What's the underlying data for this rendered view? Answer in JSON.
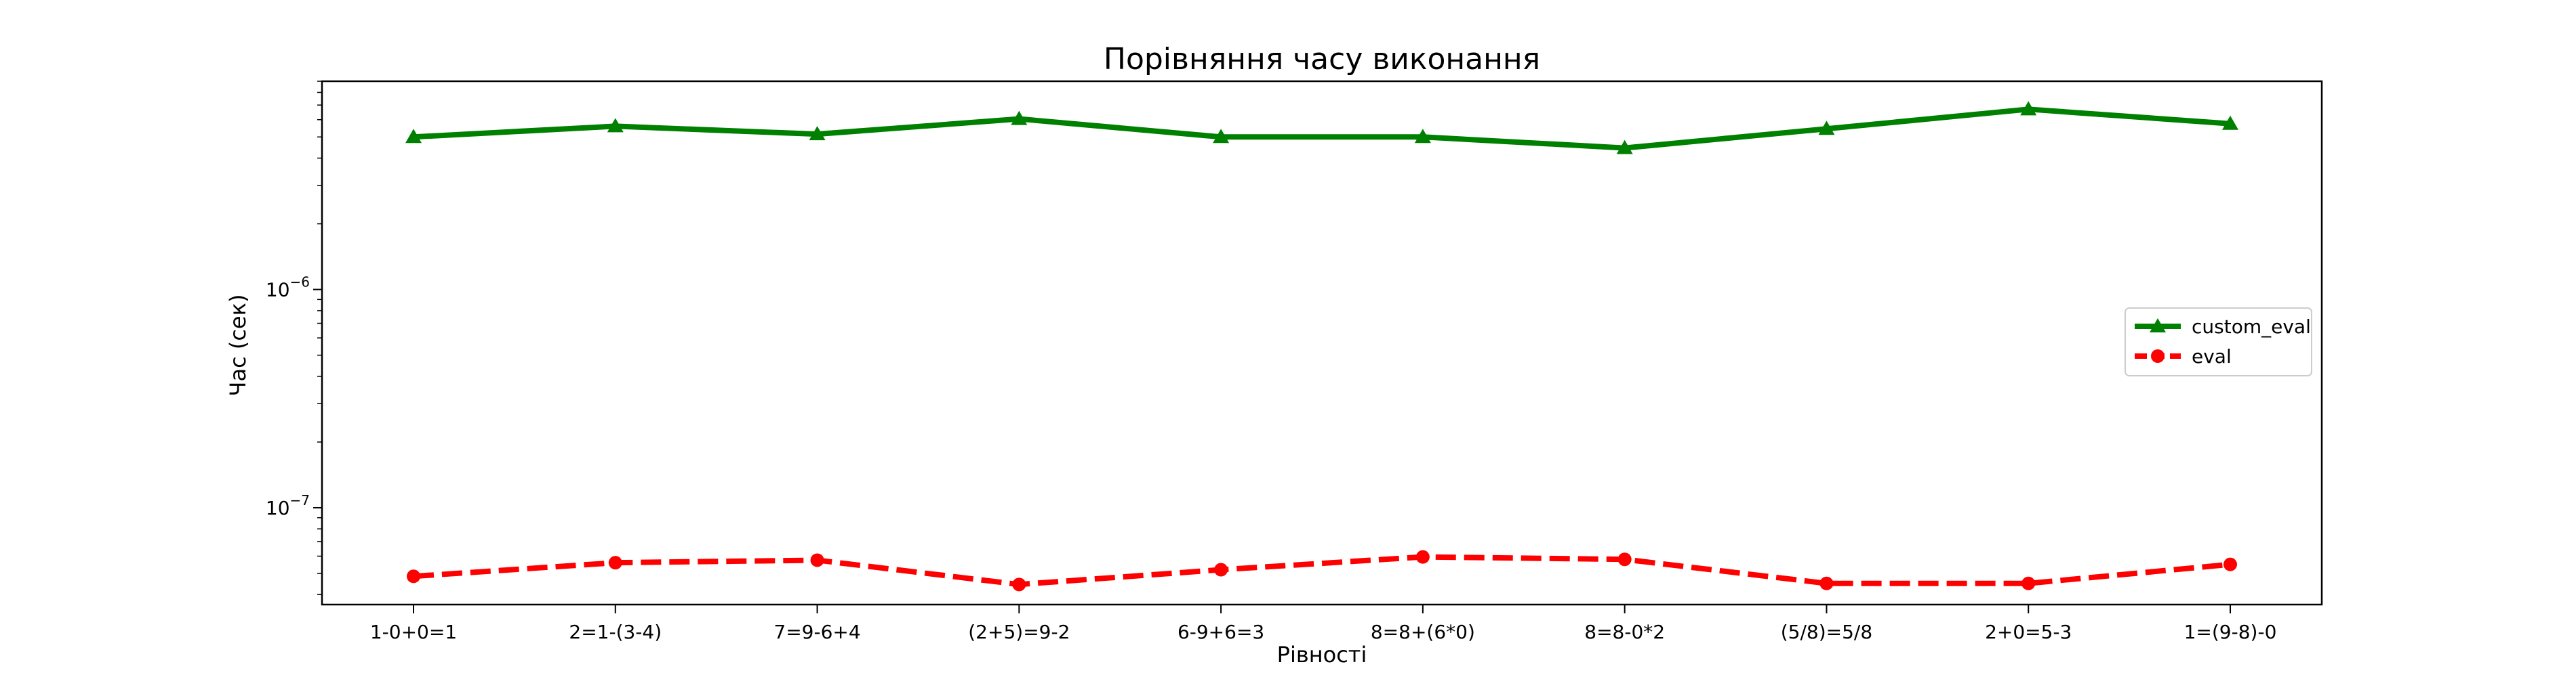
{
  "chart_data": {
    "type": "line",
    "title": "Порівняння часу виконання",
    "xlabel": "Рівності",
    "ylabel": "Час (сек)",
    "yscale": "log",
    "ylim": [
      3.6e-08,
      9e-06
    ],
    "yticks": [
      {
        "value": 1e-06,
        "base": "10",
        "exp": "−6"
      },
      {
        "value": 1e-07,
        "base": "10",
        "exp": "−7"
      }
    ],
    "categories": [
      "1-0+0=1",
      "2=1-(3-4)",
      "7=9-6+4",
      "(2+5)=9-2",
      "6-9+6=3",
      "8=8+(6*0)",
      "8=8-0*2",
      "(5/8)=5/8",
      "2+0=5-3",
      "1=(9-8)-0"
    ],
    "series": [
      {
        "name": "custom_eval",
        "color": "#008000",
        "marker": "triangle",
        "linestyle": "solid",
        "values": [
          5e-06,
          5.6e-06,
          5.15e-06,
          6.05e-06,
          5e-06,
          5e-06,
          4.45e-06,
          5.45e-06,
          6.7e-06,
          5.75e-06
        ]
      },
      {
        "name": "eval",
        "color": "#ff0000",
        "marker": "circle",
        "linestyle": "dashed",
        "values": [
          4.85e-08,
          5.6e-08,
          5.75e-08,
          4.45e-08,
          5.2e-08,
          5.95e-08,
          5.8e-08,
          4.5e-08,
          4.5e-08,
          5.5e-08
        ]
      }
    ],
    "grid": false,
    "legend": "center-right"
  }
}
